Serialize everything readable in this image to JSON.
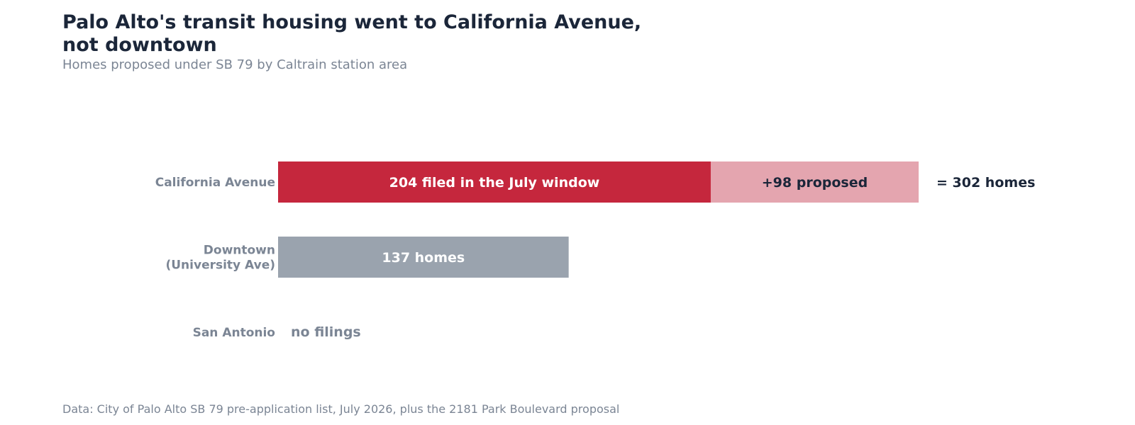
{
  "title_lines": [
    "Palo Alto's transit housing went to California Avenue,",
    "not downtown"
  ],
  "subtitle": "Homes proposed under SB 79 by Caltrain station area",
  "source": "Data: City of Palo Alto SB 79 pre-application list, July 2026, plus the 2181 Park Boulevard proposal",
  "colors": {
    "filed": "#c5273d",
    "proposed": "#e4a5af",
    "downtown": "#9aa3ae",
    "dark_text": "#1b2639",
    "muted_text": "#7b8594",
    "white_text": "#ffffff"
  },
  "chart_data": {
    "type": "bar",
    "orientation": "horizontal",
    "stacked": true,
    "categories": [
      [
        "California Avenue"
      ],
      [
        "Downtown",
        "(University Ave)"
      ],
      [
        "San Antonio"
      ]
    ],
    "series": [
      {
        "key": "filed",
        "values": [
          204,
          137,
          0
        ]
      },
      {
        "key": "proposed",
        "values": [
          98,
          0,
          0
        ]
      }
    ],
    "xlim": [
      0,
      302
    ],
    "grid": false,
    "segment_labels": [
      [
        "204 filed in the July window",
        "+98 proposed"
      ],
      [
        "137 homes"
      ],
      []
    ],
    "total_labels": [
      "= 302 homes",
      "",
      ""
    ],
    "empty_labels": [
      "",
      "",
      "no filings"
    ]
  }
}
